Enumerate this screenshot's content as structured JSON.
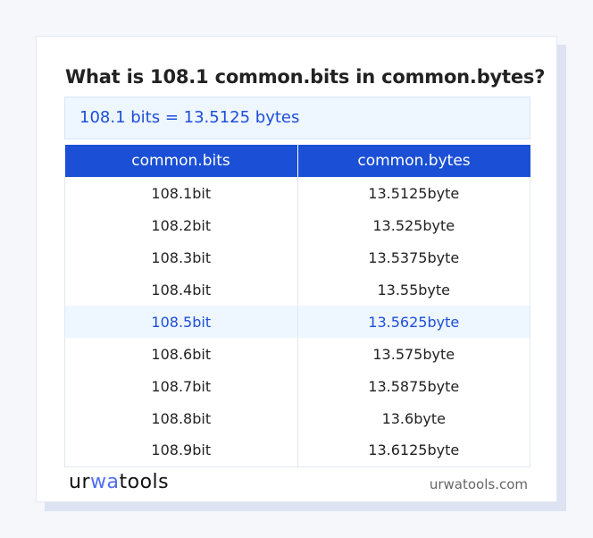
{
  "title": "What is 108.1 common.bits in common.bytes?",
  "result": "108.1 bits = 13.5125 bytes",
  "table": {
    "headers": [
      "common.bits",
      "common.bytes"
    ],
    "rows": [
      [
        "108.1bit",
        "13.5125byte"
      ],
      [
        "108.2bit",
        "13.525byte"
      ],
      [
        "108.3bit",
        "13.5375byte"
      ],
      [
        "108.4bit",
        "13.55byte"
      ],
      [
        "108.5bit",
        "13.5625byte"
      ],
      [
        "108.6bit",
        "13.575byte"
      ],
      [
        "108.7bit",
        "13.5875byte"
      ],
      [
        "108.8bit",
        "13.6byte"
      ],
      [
        "108.9bit",
        "13.6125byte"
      ]
    ],
    "highlighted_row": 4
  },
  "footer": {
    "logo": "urwatools",
    "logo_parts": [
      "ur",
      "wa",
      "too",
      "ls"
    ],
    "site": "urwatools.com"
  },
  "colors": {
    "accent": "#1a4fd6",
    "highlight_bg": "#eef6ff"
  }
}
